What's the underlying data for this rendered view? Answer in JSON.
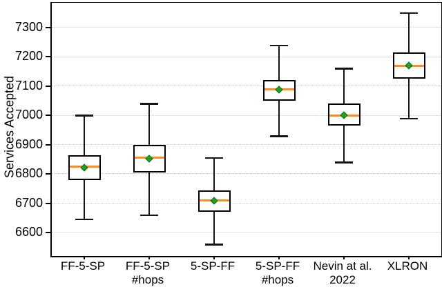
{
  "chart_data": {
    "type": "boxplot",
    "title": "",
    "ylabel": "Services Accepted",
    "xlabel": "",
    "grid": {
      "axis": "y",
      "style": "dotted",
      "color": "#c9c9c9"
    },
    "legend": null,
    "ylim": [
      6520,
      7385
    ],
    "yticks": [
      6600,
      6700,
      6800,
      6900,
      7000,
      7100,
      7200,
      7300
    ],
    "categories": [
      {
        "label": "FF-5-SP",
        "lines": [
          "FF-5-SP"
        ]
      },
      {
        "label": "FF-5-SP #hops",
        "lines": [
          "FF-5-SP",
          "#hops"
        ]
      },
      {
        "label": "5-SP-FF",
        "lines": [
          "5-SP-FF"
        ]
      },
      {
        "label": "5-SP-FF #hops",
        "lines": [
          "5-SP-FF",
          "#hops"
        ]
      },
      {
        "label": "Nevin at al. 2022",
        "lines": [
          "Nevin at al.",
          "2022"
        ]
      },
      {
        "label": "XLRON",
        "lines": [
          "XLRON"
        ]
      }
    ],
    "series": [
      {
        "name": "FF-5-SP",
        "whisker_low": 6645,
        "q1": 6780,
        "median": 6825,
        "mean": 6822,
        "q3": 6865,
        "whisker_high": 7000
      },
      {
        "name": "FF-5-SP #hops",
        "whisker_low": 6660,
        "q1": 6805,
        "median": 6855,
        "mean": 6852,
        "q3": 6900,
        "whisker_high": 7040
      },
      {
        "name": "5-SP-FF",
        "whisker_low": 6560,
        "q1": 6670,
        "median": 6710,
        "mean": 6708,
        "q3": 6745,
        "whisker_high": 6855
      },
      {
        "name": "5-SP-FF #hops",
        "whisker_low": 6930,
        "q1": 7050,
        "median": 7090,
        "mean": 7087,
        "q3": 7120,
        "whisker_high": 7240
      },
      {
        "name": "Nevin at al. 2022",
        "whisker_low": 6840,
        "q1": 6965,
        "median": 7000,
        "mean": 7000,
        "q3": 7040,
        "whisker_high": 7160
      },
      {
        "name": "XLRON",
        "whisker_low": 6990,
        "q1": 7125,
        "median": 7170,
        "mean": 7170,
        "q3": 7215,
        "whisker_high": 7350
      }
    ],
    "colors": {
      "background": "#ffffff",
      "axis": "#000000",
      "text": "#000000",
      "box_fill": "#ffffff",
      "box_edge": "#000000",
      "whisker": "#141414",
      "median": "#ff8c1f",
      "mean_fill": "#22a022",
      "mean_edge": "#0c700c",
      "grid": "#c9c9c9"
    }
  }
}
